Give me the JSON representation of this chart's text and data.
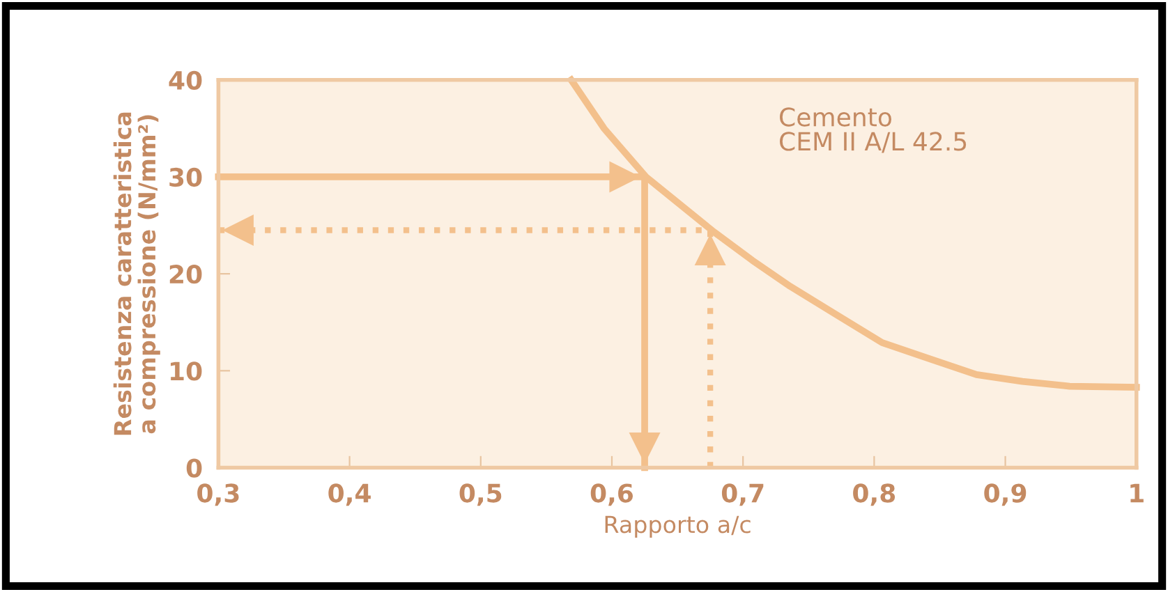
{
  "chart_data": {
    "type": "line",
    "xlabel": "Rapporto a/c",
    "ylabel": "Resistenza caratteristica\na compressione (N/mm²)",
    "annotations": [
      "Cemento\nCEM II A/L 42.5"
    ],
    "series": [
      {
        "color": "#f3c08c",
        "line_style": "solid",
        "x": [
          0.569,
          0.594,
          0.626,
          0.678,
          0.707,
          0.736,
          0.771,
          0.806,
          0.843,
          0.878,
          0.913,
          0.949,
          1.0
        ],
        "values": [
          40,
          35,
          30,
          24.3,
          21.4,
          18.7,
          15.8,
          12.9,
          11.2,
          9.6,
          8.9,
          8.4,
          8.3
        ]
      },
      {
        "color": "#f3c08c",
        "line_style": "solid",
        "x": [
          0.3,
          0.625,
          0.625
        ],
        "values": [
          30,
          30,
          0
        ]
      },
      {
        "color": "#f3c08c",
        "line_style": "dotted",
        "x": [
          0.675,
          0.675,
          0.3
        ],
        "values": [
          0,
          24.5,
          24.5
        ]
      }
    ],
    "xlim": [
      0.3,
      1.0
    ],
    "ylim": [
      0,
      40
    ],
    "xticks": [
      {
        "value": 0.3,
        "label": "0,3"
      },
      {
        "value": 0.4,
        "label": "0,4"
      },
      {
        "value": 0.5,
        "label": "0,5"
      },
      {
        "value": 0.6,
        "label": "0,6"
      },
      {
        "value": 0.7,
        "label": "0,7"
      },
      {
        "value": 0.8,
        "label": "0,8"
      },
      {
        "value": 0.9,
        "label": "0,9"
      },
      {
        "value": 1.0,
        "label": "1"
      }
    ],
    "yticks": [
      0,
      10,
      20,
      30,
      40
    ],
    "marker": "none",
    "grid": false,
    "legend": false
  }
}
